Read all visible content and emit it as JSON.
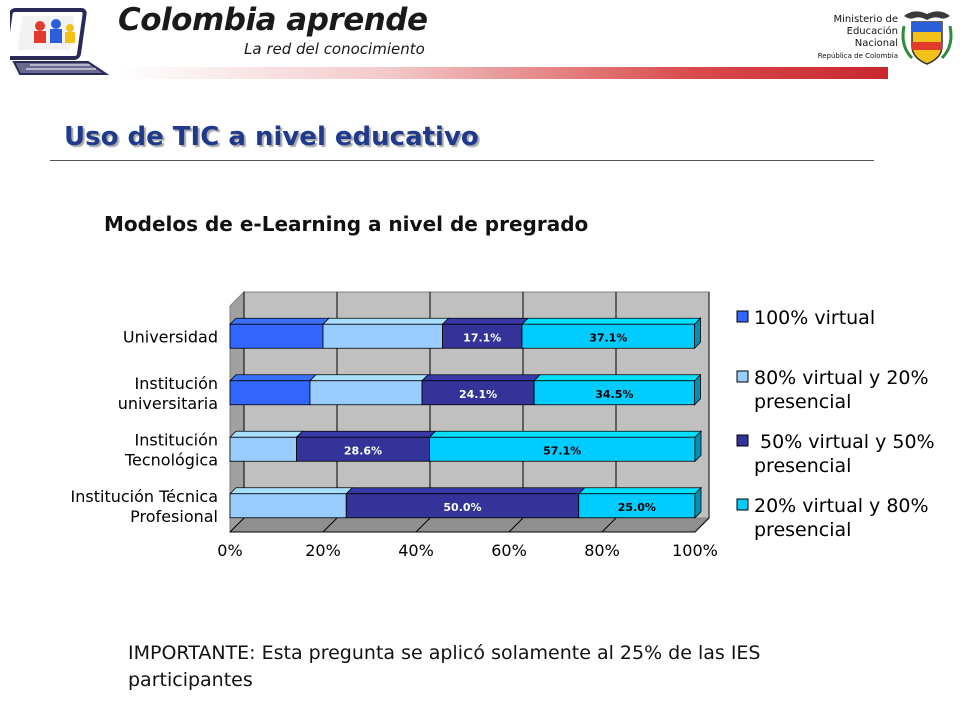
{
  "header": {
    "brand_title": "Colombia aprende",
    "brand_subtitle": "La red del conocimiento",
    "ministry_line1": "Ministerio de",
    "ministry_line2": "Educación",
    "ministry_line3": "Nacional",
    "ministry_line4": "República de Colombia",
    "logo_icon": "computer-colorful-figures-icon",
    "seal_icon": "colombia-coat-of-arms-icon"
  },
  "page_title": "Uso de TIC a nivel educativo",
  "subtitle": "Modelos de e-Learning a nivel de pregrado",
  "note": "IMPORTANTE: Esta pregunta se aplicó solamente al 25% de las IES participantes",
  "chart_data": {
    "type": "bar",
    "orientation": "horizontal",
    "stacked": "percent",
    "categories": [
      [
        "Universidad"
      ],
      [
        "Institución",
        "universitaria"
      ],
      [
        "Institución",
        "Tecnológica"
      ],
      [
        "Institución Técnica",
        "Profesional"
      ]
    ],
    "series": [
      {
        "name": "100% virtual",
        "color": "#3366ff",
        "values": [
          20.0,
          17.2,
          0,
          0
        ],
        "labels": [
          "",
          "",
          "",
          ""
        ]
      },
      {
        "name": "80% virtual y 20% presencial",
        "color": "#99ccff",
        "values": [
          25.7,
          24.1,
          14.3,
          25.0
        ],
        "labels": [
          "",
          "",
          "",
          ""
        ]
      },
      {
        "name": " 50% virtual y 50% presencial",
        "color": "#333399",
        "values": [
          17.1,
          24.1,
          28.6,
          50.0
        ],
        "labels": [
          "17.1%",
          "24.1%",
          "28.6%",
          "50.0%"
        ]
      },
      {
        "name": "20% virtual y 80% presencial",
        "color": "#00ccff",
        "values": [
          37.1,
          34.5,
          57.1,
          25.0
        ],
        "labels": [
          "37.1%",
          "34.5%",
          "57.1%",
          "25.0%"
        ]
      }
    ],
    "legend": [
      [
        "100% virtual"
      ],
      [
        "80% virtual y 20%",
        "presencial"
      ],
      [
        " 50% virtual y 50%",
        "presencial"
      ],
      [
        "20% virtual y 80%",
        "presencial"
      ]
    ],
    "xticks": [
      "0%",
      "20%",
      "40%",
      "60%",
      "80%",
      "100%"
    ],
    "xlim": [
      0,
      100
    ],
    "grid": true,
    "legend_position": "right",
    "background": "#c0c0c0"
  }
}
